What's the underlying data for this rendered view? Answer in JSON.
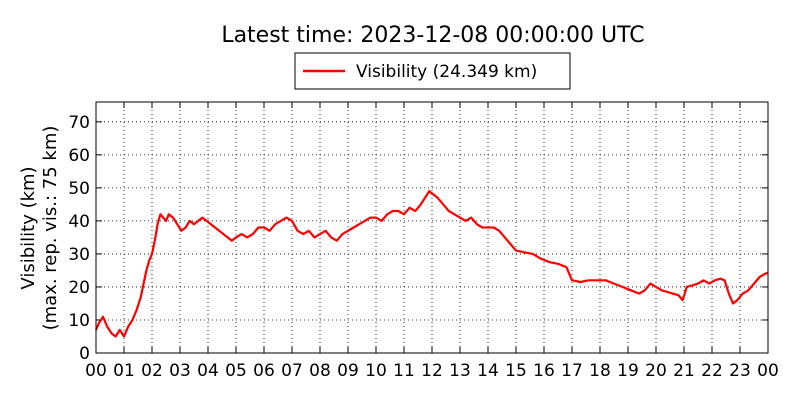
{
  "chart_data": {
    "type": "line",
    "title": "Latest time: 2023-12-08 00:00:00 UTC",
    "ylabel_line1": "Visibility (km)",
    "ylabel_line2": "(max. rep. vis.: 75 km)",
    "xlabel": "",
    "x_tick_labels": [
      "00",
      "01",
      "02",
      "03",
      "04",
      "05",
      "06",
      "07",
      "08",
      "09",
      "10",
      "11",
      "12",
      "13",
      "14",
      "15",
      "16",
      "17",
      "18",
      "19",
      "20",
      "21",
      "22",
      "23",
      "00"
    ],
    "y_ticks": [
      0,
      10,
      20,
      30,
      40,
      50,
      60,
      70
    ],
    "xlim": [
      0,
      24
    ],
    "ylim": [
      0,
      76
    ],
    "grid": true,
    "legend_placement": "top-center",
    "series": [
      {
        "name": "Visibility (24.349 km)",
        "color": "#ff0000",
        "x": [
          0.0,
          0.1,
          0.25,
          0.4,
          0.55,
          0.7,
          0.85,
          1.0,
          1.15,
          1.3,
          1.45,
          1.6,
          1.7,
          1.8,
          1.9,
          2.0,
          2.1,
          2.2,
          2.3,
          2.4,
          2.5,
          2.6,
          2.75,
          2.9,
          3.05,
          3.2,
          3.35,
          3.5,
          3.65,
          3.8,
          3.95,
          4.1,
          4.25,
          4.4,
          4.55,
          4.7,
          4.85,
          5.0,
          5.2,
          5.4,
          5.6,
          5.8,
          6.0,
          6.2,
          6.4,
          6.6,
          6.8,
          7.0,
          7.2,
          7.4,
          7.6,
          7.8,
          8.0,
          8.2,
          8.4,
          8.6,
          8.8,
          9.0,
          9.2,
          9.4,
          9.6,
          9.8,
          10.0,
          10.2,
          10.4,
          10.6,
          10.8,
          11.0,
          11.2,
          11.4,
          11.6,
          11.75,
          11.9,
          12.05,
          12.2,
          12.4,
          12.6,
          12.8,
          13.0,
          13.2,
          13.4,
          13.6,
          13.8,
          14.0,
          14.2,
          14.4,
          14.6,
          14.8,
          15.0,
          15.3,
          15.6,
          15.9,
          16.2,
          16.5,
          16.8,
          16.9,
          17.0,
          17.3,
          17.6,
          17.9,
          18.2,
          18.5,
          18.8,
          19.1,
          19.4,
          19.6,
          19.8,
          20.0,
          20.2,
          20.4,
          20.6,
          20.8,
          20.95,
          21.1,
          21.3,
          21.5,
          21.7,
          21.9,
          22.1,
          22.3,
          22.45,
          22.6,
          22.75,
          22.9,
          23.1,
          23.3,
          23.5,
          23.7,
          23.9,
          24.0
        ],
        "values": [
          7,
          9,
          11,
          8,
          6,
          5,
          7,
          5,
          8,
          10,
          13,
          17,
          21,
          25,
          28,
          30,
          34,
          39,
          42,
          41,
          40,
          42,
          41,
          39,
          37,
          38,
          40,
          39,
          40,
          41,
          40,
          39,
          38,
          37,
          36,
          35,
          34,
          35,
          36,
          35,
          36,
          38,
          38,
          37,
          39,
          40,
          41,
          40,
          37,
          36,
          37,
          35,
          36,
          37,
          35,
          34,
          36,
          37,
          38,
          39,
          40,
          41,
          41,
          40,
          42,
          43,
          43,
          42,
          44,
          43,
          45,
          47,
          49,
          48,
          47,
          45,
          43,
          42,
          41,
          40,
          41,
          39,
          38,
          38,
          38,
          37,
          35,
          33,
          31,
          30.5,
          30,
          28.5,
          27.5,
          27,
          26,
          24,
          22,
          21.5,
          22,
          22,
          22,
          21,
          20,
          19,
          18,
          19,
          21,
          20,
          19,
          18.5,
          18,
          17.5,
          16,
          20,
          20.5,
          21,
          22,
          21,
          22,
          22.5,
          22,
          18,
          15,
          16,
          18,
          19,
          21,
          23,
          24,
          24.3
        ]
      }
    ]
  }
}
